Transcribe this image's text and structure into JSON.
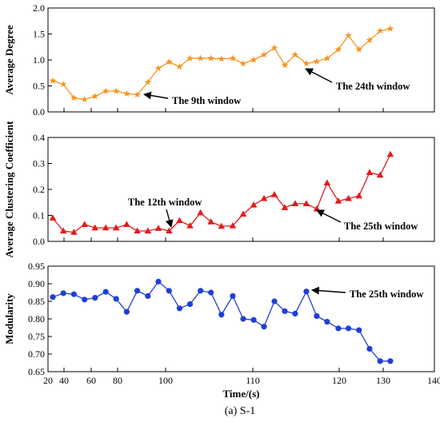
{
  "caption": "(a) S-1",
  "chart_data": [
    {
      "type": "line",
      "ylabel": "Average Degree",
      "x": [
        26,
        39.2,
        47.3,
        55.1,
        62.9,
        71,
        78.9,
        83.8,
        88.2,
        92.6,
        97,
        100.4,
        101.6,
        102.8,
        104,
        105.2,
        106.4,
        107.7,
        108.9,
        110.1,
        111.3,
        112.5,
        113.7,
        114.9,
        116.2,
        117.4,
        118.6,
        119.9,
        122.1,
        124.5,
        126.9,
        129.3,
        131.4
      ],
      "series": [
        {
          "color": "#f7931e",
          "marker": "star",
          "values": [
            0.6,
            0.53,
            0.27,
            0.24,
            0.3,
            0.4,
            0.4,
            0.35,
            0.33,
            0.57,
            0.84,
            0.96,
            0.87,
            1.03,
            1.03,
            1.03,
            1.02,
            1.03,
            0.93,
            1.0,
            1.1,
            1.23,
            0.9,
            1.1,
            0.93,
            0.97,
            1.03,
            1.2,
            1.47,
            1.2,
            1.38,
            1.56,
            1.6
          ]
        }
      ],
      "xlim": [
        20,
        140
      ],
      "xticks": [
        20,
        40,
        60,
        80,
        100,
        110,
        120,
        130,
        140
      ],
      "ylim": [
        0,
        2
      ],
      "yticks": [
        {
          "value": 0,
          "label": "0.0"
        },
        0.5,
        {
          "value": 1,
          "label": "1.0"
        },
        1.5,
        {
          "value": 2,
          "label": "2.0"
        }
      ],
      "annotations": [
        "The 9th window",
        "The 24th window"
      ]
    },
    {
      "type": "line",
      "ylabel": "Average Clustering Coefficient",
      "x": [
        26,
        39.2,
        47.3,
        55.1,
        62.9,
        71,
        78.9,
        83.8,
        88.2,
        92.6,
        97,
        100.4,
        101.6,
        102.8,
        104,
        105.2,
        106.4,
        107.7,
        108.9,
        110.1,
        111.3,
        112.5,
        113.7,
        114.9,
        116.2,
        117.4,
        118.6,
        119.9,
        122.1,
        124.5,
        126.9,
        129.3,
        131.4
      ],
      "series": [
        {
          "color": "#e31a1c",
          "marker": "triangle",
          "values": [
            0.09,
            0.04,
            0.035,
            0.065,
            0.052,
            0.052,
            0.052,
            0.065,
            0.04,
            0.04,
            0.05,
            0.04,
            0.08,
            0.06,
            0.11,
            0.075,
            0.058,
            0.06,
            0.105,
            0.14,
            0.165,
            0.18,
            0.13,
            0.145,
            0.145,
            0.125,
            0.225,
            0.155,
            0.165,
            0.175,
            0.265,
            0.255,
            0.335
          ]
        }
      ],
      "xlim": [
        20,
        140
      ],
      "xticks": [
        20,
        40,
        60,
        80,
        100,
        110,
        120,
        130,
        140
      ],
      "ylim": [
        0,
        0.4
      ],
      "yticks": [
        {
          "value": 0,
          "label": "0.0"
        },
        0.1,
        0.2,
        0.3,
        0.4
      ],
      "annotations": [
        "The 12th window",
        "The 25th window"
      ]
    },
    {
      "type": "line",
      "ylabel": "Modularity",
      "xlabel": "Time/(s)",
      "x": [
        26,
        39.2,
        47.3,
        55.1,
        62.9,
        71,
        78.9,
        83.8,
        88.2,
        92.6,
        97,
        100.4,
        101.6,
        102.8,
        104,
        105.2,
        106.4,
        107.7,
        108.9,
        110.1,
        111.3,
        112.5,
        113.7,
        114.9,
        116.2,
        117.4,
        118.6,
        119.9,
        122.1,
        124.5,
        126.9,
        129.3,
        131.4
      ],
      "series": [
        {
          "color": "#1f3fd6",
          "marker": "circle",
          "values": [
            0.862,
            0.873,
            0.87,
            0.855,
            0.86,
            0.877,
            0.857,
            0.82,
            0.88,
            0.865,
            0.906,
            0.88,
            0.83,
            0.842,
            0.88,
            0.875,
            0.812,
            0.865,
            0.8,
            0.797,
            0.778,
            0.85,
            0.822,
            0.815,
            0.878,
            0.808,
            0.792,
            0.773,
            0.773,
            0.768,
            0.715,
            0.68,
            0.68
          ]
        }
      ],
      "xlim": [
        20,
        140
      ],
      "xticks": [
        20,
        40,
        60,
        80,
        100,
        110,
        120,
        130,
        140
      ],
      "ylim": [
        0.65,
        0.95
      ],
      "yticks": [
        0.65,
        {
          "value": 0.7,
          "label": "0.70"
        },
        0.75,
        {
          "value": 0.8,
          "label": "0.80"
        },
        0.85,
        {
          "value": 0.9,
          "label": "0.90"
        },
        0.95
      ],
      "annotations": [
        "The 25th window"
      ]
    }
  ]
}
